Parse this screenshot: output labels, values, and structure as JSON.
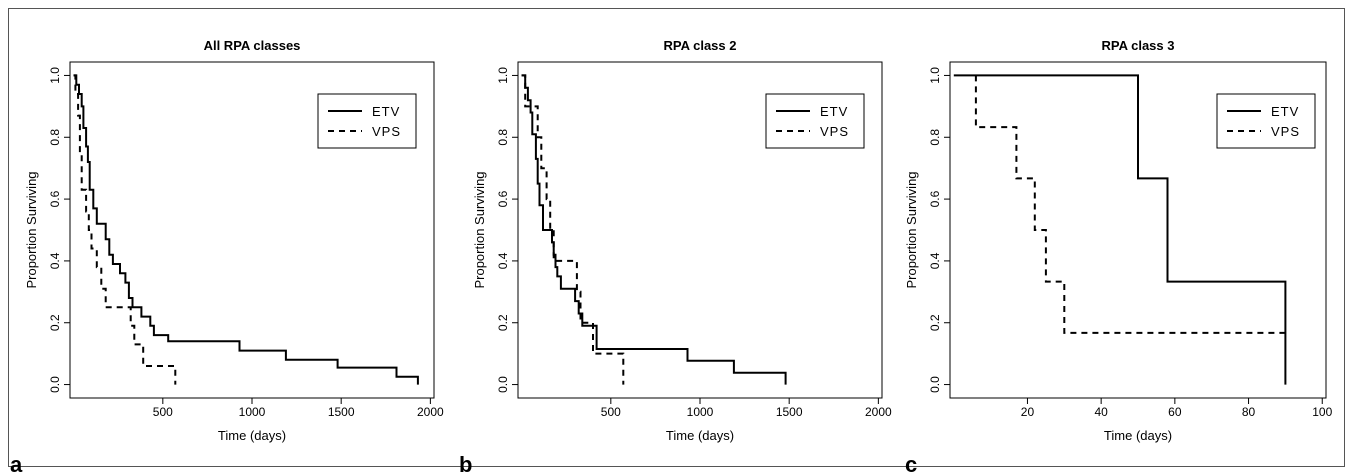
{
  "figure": {
    "panel_letters": [
      "a",
      "b",
      "c"
    ]
  },
  "chart_data": [
    {
      "type": "line",
      "step": true,
      "title": "All RPA classes",
      "xlabel": "Time (days)",
      "ylabel": "Proportion Surviving",
      "xlim": [
        0,
        2000
      ],
      "ylim": [
        0,
        1
      ],
      "xticks": [
        500,
        1000,
        1500,
        2000
      ],
      "yticks": [
        0.0,
        0.2,
        0.4,
        0.6,
        0.8,
        1.0
      ],
      "legend": "top-right",
      "grid": false,
      "series": [
        {
          "name": "ETV",
          "style": "solid",
          "points": [
            [
              0,
              1.0
            ],
            [
              15,
              1.0
            ],
            [
              15,
              0.97
            ],
            [
              30,
              0.97
            ],
            [
              30,
              0.94
            ],
            [
              45,
              0.94
            ],
            [
              45,
              0.9
            ],
            [
              55,
              0.9
            ],
            [
              55,
              0.83
            ],
            [
              70,
              0.83
            ],
            [
              70,
              0.77
            ],
            [
              80,
              0.77
            ],
            [
              80,
              0.72
            ],
            [
              90,
              0.72
            ],
            [
              90,
              0.63
            ],
            [
              110,
              0.63
            ],
            [
              110,
              0.57
            ],
            [
              130,
              0.57
            ],
            [
              130,
              0.52
            ],
            [
              180,
              0.52
            ],
            [
              180,
              0.47
            ],
            [
              200,
              0.47
            ],
            [
              200,
              0.42
            ],
            [
              220,
              0.42
            ],
            [
              220,
              0.39
            ],
            [
              260,
              0.39
            ],
            [
              260,
              0.36
            ],
            [
              290,
              0.36
            ],
            [
              290,
              0.33
            ],
            [
              310,
              0.33
            ],
            [
              310,
              0.28
            ],
            [
              330,
              0.28
            ],
            [
              330,
              0.25
            ],
            [
              380,
              0.25
            ],
            [
              380,
              0.22
            ],
            [
              430,
              0.22
            ],
            [
              430,
              0.19
            ],
            [
              450,
              0.19
            ],
            [
              450,
              0.16
            ],
            [
              530,
              0.16
            ],
            [
              530,
              0.14
            ],
            [
              930,
              0.14
            ],
            [
              930,
              0.11
            ],
            [
              1190,
              0.11
            ],
            [
              1190,
              0.08
            ],
            [
              1480,
              0.08
            ],
            [
              1480,
              0.055
            ],
            [
              1810,
              0.055
            ],
            [
              1810,
              0.025
            ],
            [
              1930,
              0.025
            ],
            [
              1930,
              0.0
            ]
          ]
        },
        {
          "name": "VPS",
          "style": "dashed",
          "points": [
            [
              0,
              1.0
            ],
            [
              10,
              1.0
            ],
            [
              10,
              0.94
            ],
            [
              25,
              0.94
            ],
            [
              25,
              0.87
            ],
            [
              35,
              0.87
            ],
            [
              35,
              0.75
            ],
            [
              45,
              0.75
            ],
            [
              45,
              0.63
            ],
            [
              70,
              0.63
            ],
            [
              70,
              0.56
            ],
            [
              85,
              0.56
            ],
            [
              85,
              0.5
            ],
            [
              100,
              0.5
            ],
            [
              100,
              0.44
            ],
            [
              130,
              0.44
            ],
            [
              130,
              0.38
            ],
            [
              155,
              0.38
            ],
            [
              155,
              0.31
            ],
            [
              180,
              0.31
            ],
            [
              180,
              0.25
            ],
            [
              320,
              0.25
            ],
            [
              320,
              0.19
            ],
            [
              340,
              0.19
            ],
            [
              340,
              0.13
            ],
            [
              390,
              0.13
            ],
            [
              390,
              0.06
            ],
            [
              570,
              0.06
            ],
            [
              570,
              0.0
            ]
          ]
        }
      ]
    },
    {
      "type": "line",
      "step": true,
      "title": "RPA class 2",
      "xlabel": "Time (days)",
      "ylabel": "Proportion Surviving",
      "xlim": [
        0,
        2000
      ],
      "ylim": [
        0,
        1
      ],
      "xticks": [
        500,
        1000,
        1500,
        2000
      ],
      "yticks": [
        0.0,
        0.2,
        0.4,
        0.6,
        0.8,
        1.0
      ],
      "legend": "top-right",
      "grid": false,
      "series": [
        {
          "name": "ETV",
          "style": "solid",
          "points": [
            [
              0,
              1.0
            ],
            [
              20,
              1.0
            ],
            [
              20,
              0.96
            ],
            [
              35,
              0.96
            ],
            [
              35,
              0.92
            ],
            [
              50,
              0.92
            ],
            [
              50,
              0.88
            ],
            [
              60,
              0.88
            ],
            [
              60,
              0.81
            ],
            [
              80,
              0.81
            ],
            [
              80,
              0.73
            ],
            [
              90,
              0.73
            ],
            [
              90,
              0.65
            ],
            [
              100,
              0.65
            ],
            [
              100,
              0.58
            ],
            [
              120,
              0.58
            ],
            [
              120,
              0.5
            ],
            [
              170,
              0.5
            ],
            [
              170,
              0.46
            ],
            [
              180,
              0.46
            ],
            [
              180,
              0.42
            ],
            [
              190,
              0.42
            ],
            [
              190,
              0.38
            ],
            [
              200,
              0.38
            ],
            [
              200,
              0.35
            ],
            [
              220,
              0.35
            ],
            [
              220,
              0.31
            ],
            [
              300,
              0.31
            ],
            [
              300,
              0.27
            ],
            [
              320,
              0.27
            ],
            [
              320,
              0.23
            ],
            [
              340,
              0.23
            ],
            [
              340,
              0.19
            ],
            [
              420,
              0.19
            ],
            [
              420,
              0.115
            ],
            [
              930,
              0.115
            ],
            [
              930,
              0.077
            ],
            [
              1190,
              0.077
            ],
            [
              1190,
              0.038
            ],
            [
              1480,
              0.038
            ],
            [
              1480,
              0.0
            ]
          ]
        },
        {
          "name": "VPS",
          "style": "dashed",
          "points": [
            [
              0,
              1.0
            ],
            [
              20,
              1.0
            ],
            [
              20,
              0.9
            ],
            [
              90,
              0.9
            ],
            [
              90,
              0.8
            ],
            [
              110,
              0.8
            ],
            [
              110,
              0.7
            ],
            [
              140,
              0.7
            ],
            [
              140,
              0.6
            ],
            [
              160,
              0.6
            ],
            [
              160,
              0.5
            ],
            [
              180,
              0.5
            ],
            [
              180,
              0.4
            ],
            [
              310,
              0.4
            ],
            [
              310,
              0.3
            ],
            [
              330,
              0.3
            ],
            [
              330,
              0.2
            ],
            [
              400,
              0.2
            ],
            [
              400,
              0.1
            ],
            [
              570,
              0.1
            ],
            [
              570,
              0.0
            ]
          ]
        }
      ]
    },
    {
      "type": "line",
      "step": true,
      "title": "RPA class 3",
      "xlabel": "Time (days)",
      "ylabel": "Proportion Surviving",
      "xlim": [
        0,
        100
      ],
      "ylim": [
        0,
        1
      ],
      "xticks": [
        20,
        40,
        60,
        80,
        100
      ],
      "yticks": [
        0.0,
        0.2,
        0.4,
        0.6,
        0.8,
        1.0
      ],
      "legend": "top-right",
      "grid": false,
      "series": [
        {
          "name": "ETV",
          "style": "solid",
          "points": [
            [
              0,
              1.0
            ],
            [
              50,
              1.0
            ],
            [
              50,
              0.667
            ],
            [
              58,
              0.667
            ],
            [
              58,
              0.333
            ],
            [
              90,
              0.333
            ],
            [
              90,
              0.0
            ]
          ]
        },
        {
          "name": "VPS",
          "style": "dashed",
          "points": [
            [
              6,
              1.0
            ],
            [
              6,
              0.833
            ],
            [
              17,
              0.833
            ],
            [
              17,
              0.667
            ],
            [
              22,
              0.667
            ],
            [
              22,
              0.5
            ],
            [
              25,
              0.5
            ],
            [
              25,
              0.333
            ],
            [
              30,
              0.333
            ],
            [
              30,
              0.167
            ],
            [
              90,
              0.167
            ]
          ]
        }
      ]
    }
  ]
}
